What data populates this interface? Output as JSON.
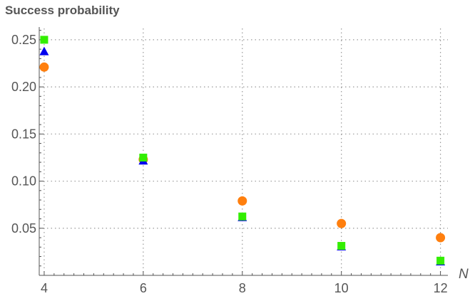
{
  "chart_data": {
    "type": "scatter",
    "title": "Success probability",
    "xlabel": "N",
    "ylabel": "",
    "xlim": [
      3.9,
      12.15
    ],
    "ylim": [
      0.0,
      0.262
    ],
    "x_ticks": [
      4,
      6,
      8,
      10,
      12
    ],
    "x_tick_labels": [
      "4",
      "6",
      "8",
      "10",
      "12"
    ],
    "y_ticks": [
      0.05,
      0.1,
      0.15,
      0.2,
      0.25
    ],
    "y_tick_labels": [
      "0.05",
      "0.10",
      "0.15",
      "0.20",
      "0.25"
    ],
    "grid": true,
    "legend": "none",
    "series": [
      {
        "marker": "circle",
        "color": "#ff7f0e",
        "x": [
          4,
          6,
          8,
          10,
          12
        ],
        "y": [
          0.221,
          0.123,
          0.079,
          0.055,
          0.04
        ]
      },
      {
        "marker": "triangle",
        "color": "#0000ee",
        "x": [
          4,
          6,
          8,
          10,
          12
        ],
        "y": [
          0.237,
          0.121,
          0.061,
          0.03,
          0.014
        ]
      },
      {
        "marker": "square",
        "color": "#33ee00",
        "x": [
          4,
          6,
          8,
          10,
          12
        ],
        "y": [
          0.25,
          0.125,
          0.0625,
          0.0313,
          0.0156
        ]
      }
    ],
    "colors": {
      "axis": "#555555",
      "grid": "#999999",
      "text": "#555555"
    }
  }
}
